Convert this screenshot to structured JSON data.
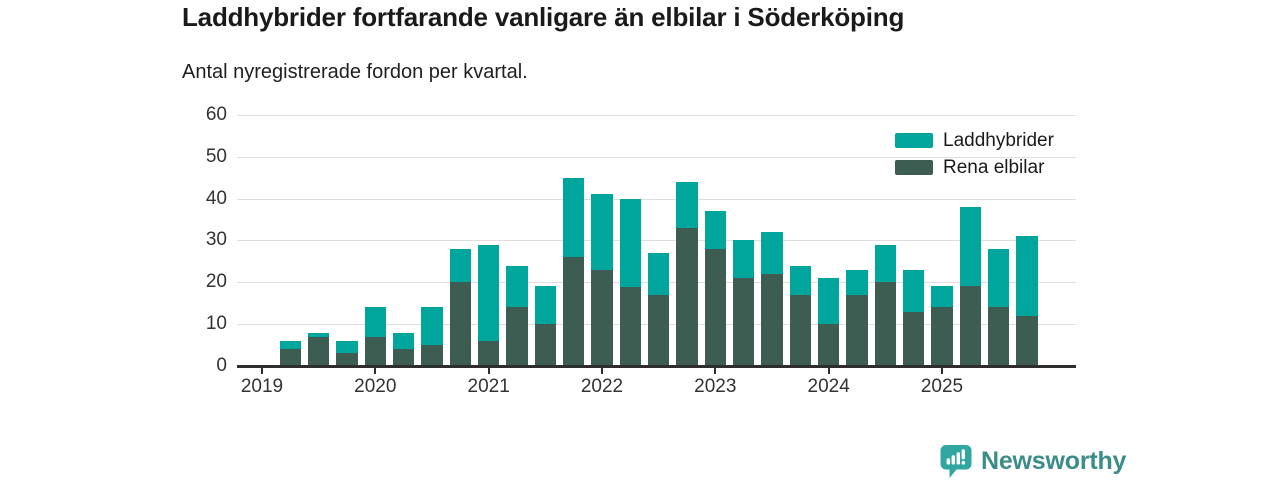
{
  "header": {
    "title": "Laddhybrider fortfarande vanligare än elbilar i Söderköping",
    "subtitle": "Antal nyregistrerade fordon per kvartal."
  },
  "chart_data": {
    "type": "bar",
    "stacked": true,
    "title": "Laddhybrider fortfarande vanligare än elbilar i Söderköping",
    "subtitle": "Antal nyregistrerade fordon per kvartal.",
    "x_quarters": [
      "2019 K2",
      "2019 K3",
      "2019 K4",
      "2020 K1",
      "2020 K2",
      "2020 K3",
      "2020 K4",
      "2021 K1",
      "2021 K2",
      "2021 K3",
      "2021 K4",
      "2022 K1",
      "2022 K2",
      "2022 K3",
      "2022 K4",
      "2023 K1",
      "2023 K2",
      "2023 K3",
      "2023 K4",
      "2024 K1",
      "2024 K2",
      "2024 K3",
      "2024 K4",
      "2025 K1",
      "2025 K2",
      "2025 K3",
      "2025 K4"
    ],
    "series": [
      {
        "name": "Laddhybrider",
        "color": "#00a69b",
        "values": [
          2,
          1,
          3,
          7,
          4,
          9,
          8,
          23,
          10,
          9,
          19,
          18,
          21,
          10,
          11,
          9,
          9,
          10,
          7,
          11,
          6,
          9,
          10,
          5,
          19,
          14,
          19
        ]
      },
      {
        "name": "Rena elbilar",
        "color": "#3d5c52",
        "values": [
          4,
          7,
          3,
          7,
          4,
          5,
          20,
          6,
          14,
          10,
          26,
          23,
          19,
          17,
          33,
          28,
          21,
          22,
          17,
          10,
          17,
          20,
          13,
          14,
          19,
          14,
          12
        ]
      }
    ],
    "totals": [
      6,
      8,
      6,
      14,
      8,
      14,
      28,
      29,
      24,
      19,
      45,
      41,
      40,
      27,
      44,
      37,
      30,
      32,
      24,
      21,
      23,
      29,
      23,
      19,
      38,
      28,
      31
    ],
    "stack_order_bottom_to_top": [
      "Rena elbilar",
      "Laddhybrider"
    ],
    "ylim": [
      0,
      60
    ],
    "yticks": [
      0,
      10,
      20,
      30,
      40,
      50,
      60
    ],
    "xticks_years": [
      "2019",
      "2020",
      "2021",
      "2022",
      "2023",
      "2024",
      "2025"
    ],
    "legend_position": "top-right",
    "grid": "horizontal"
  },
  "footer": {
    "brand": "Newsworthy"
  },
  "colors": {
    "laddhybrider": "#00a69b",
    "rena_elbilar": "#3d5c52",
    "gridline": "#dedede",
    "axis": "#2e2e2e",
    "brand_text": "#3c8c89",
    "brand_icon": "#2fa6a0"
  }
}
